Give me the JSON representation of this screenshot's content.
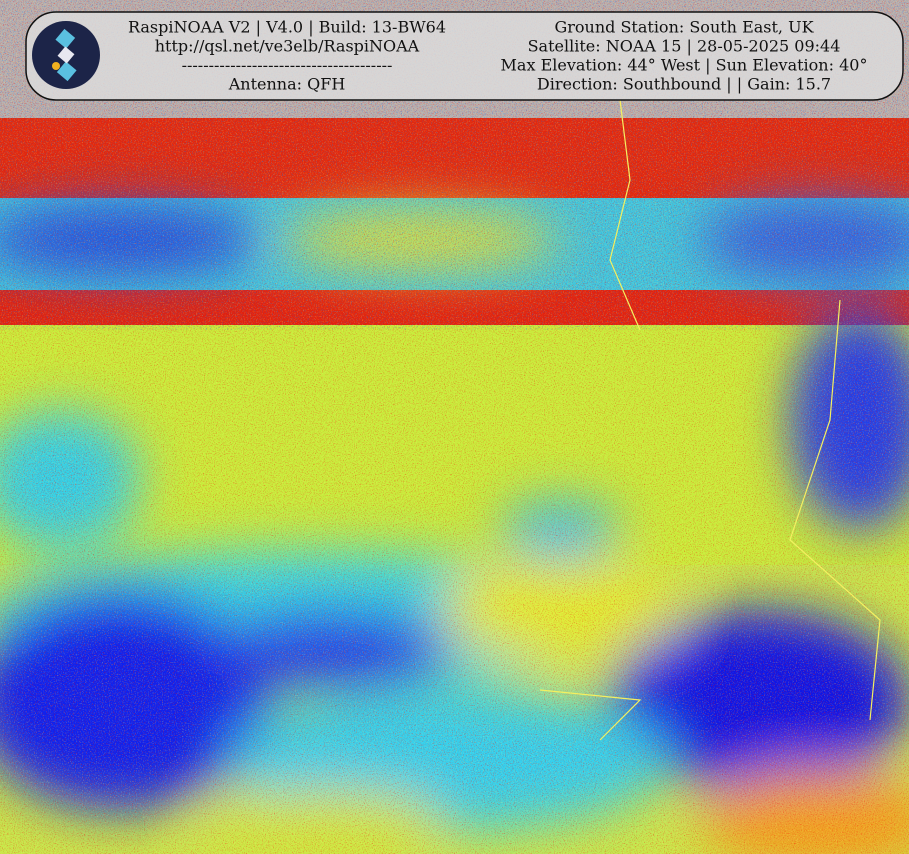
{
  "header": {
    "left": [
      "RaspiNOAA V2 | V4.0 | Build: 13-BW64",
      "http://qsl.net/ve3elb/RaspiNOAA",
      "---------------------------------------",
      "Antenna: QFH"
    ],
    "right": [
      "Ground Station: South East, UK",
      "Satellite: NOAA 15 | 28-05-2025 09:44",
      "Max Elevation: 44° West | Sun Elevation: 40°",
      "Direction: Southbound | | Gain: 15.7"
    ]
  }
}
